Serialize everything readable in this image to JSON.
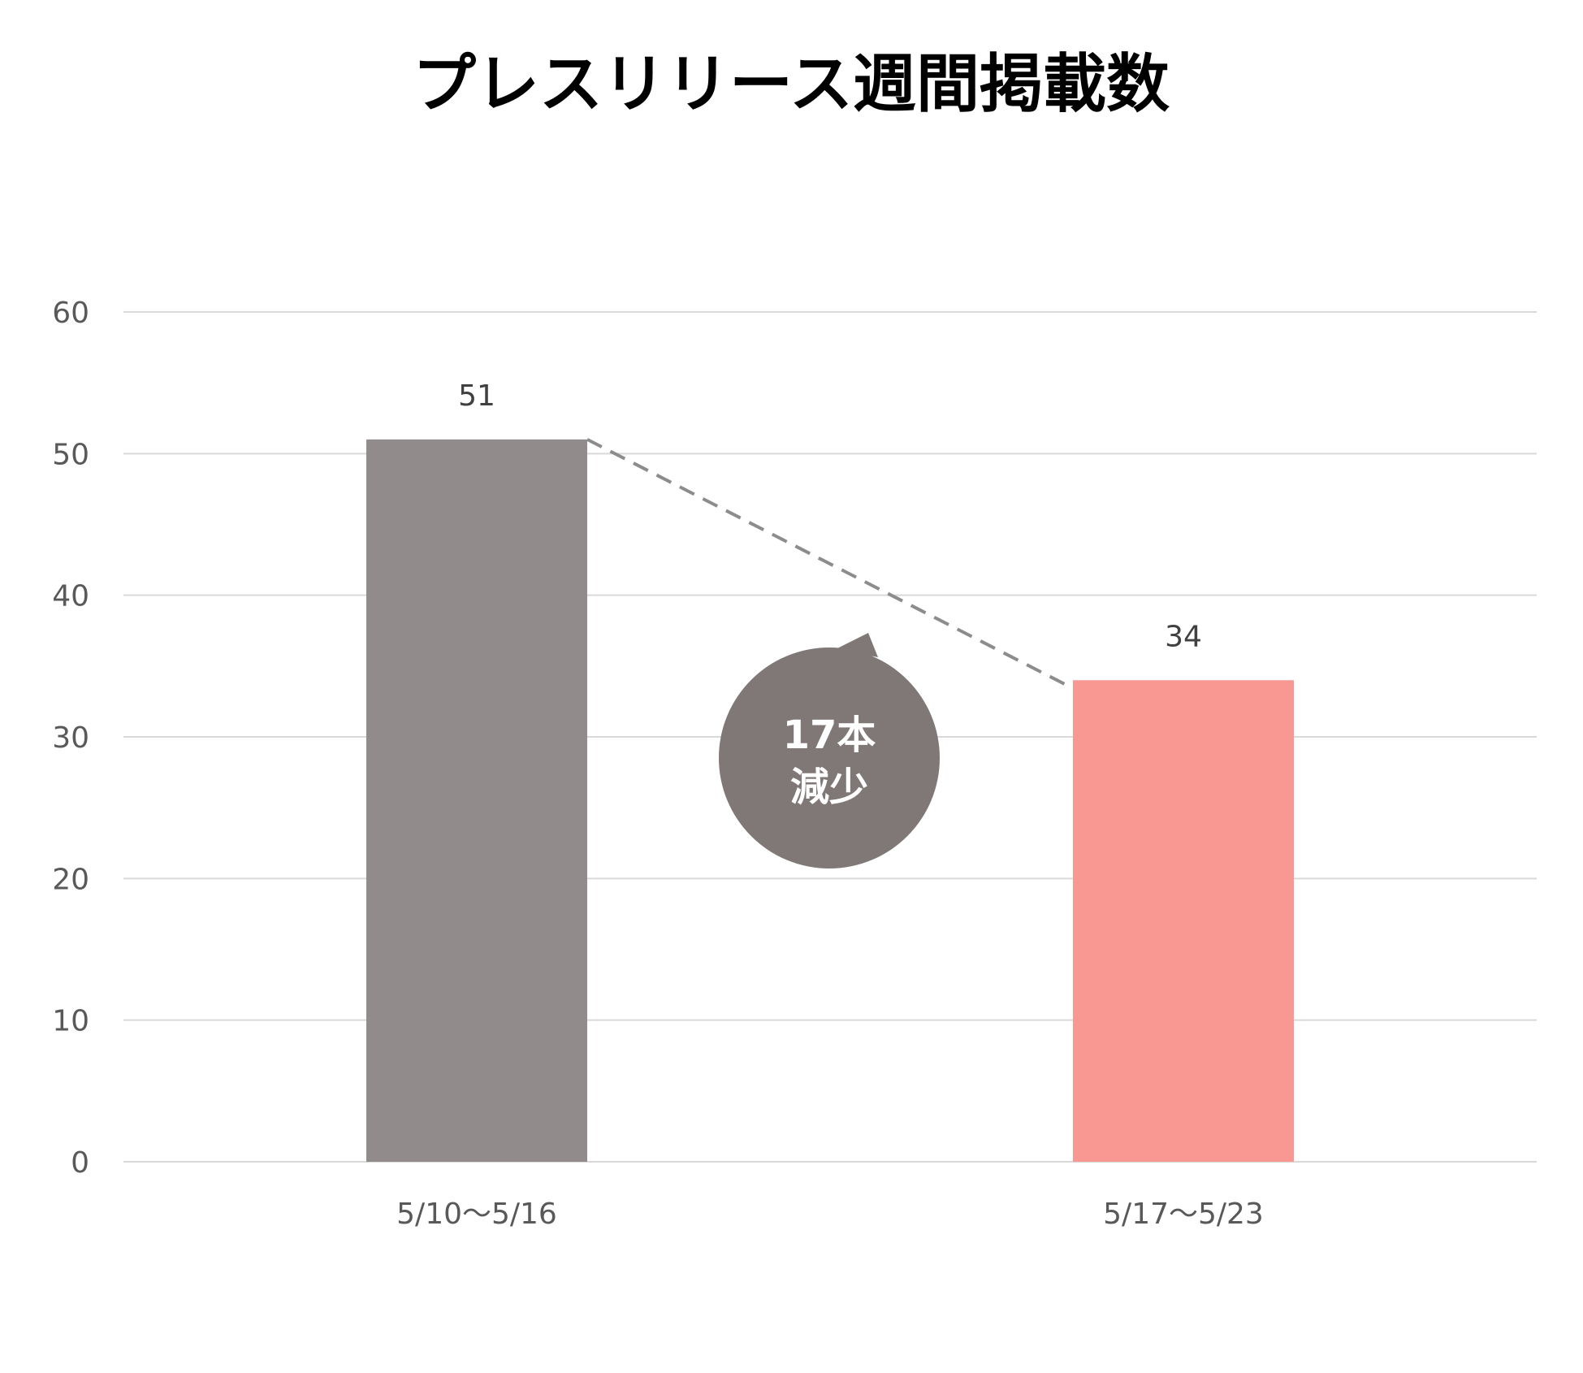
{
  "chart_data": {
    "type": "bar",
    "title": "プレスリリース週間掲載数",
    "xlabel": "",
    "ylabel": "",
    "categories": [
      "5/10～5/16",
      "5/17～5/23"
    ],
    "values": [
      51,
      34
    ],
    "bar_colors": [
      "#918c8b",
      "#f99893"
    ],
    "ylim": [
      0,
      60
    ],
    "yticks": [
      0,
      10,
      20,
      30,
      40,
      50,
      60
    ],
    "data_labels": [
      "51",
      "34"
    ],
    "grid": true,
    "legend": "none",
    "annotation": {
      "line1": "17本",
      "line2": "減少",
      "color": "#7f7877",
      "connector": "dashed line from top of first bar to top of second bar",
      "connector_color": "#8c8c8c"
    },
    "gridline_color": "#d9d9d9"
  }
}
